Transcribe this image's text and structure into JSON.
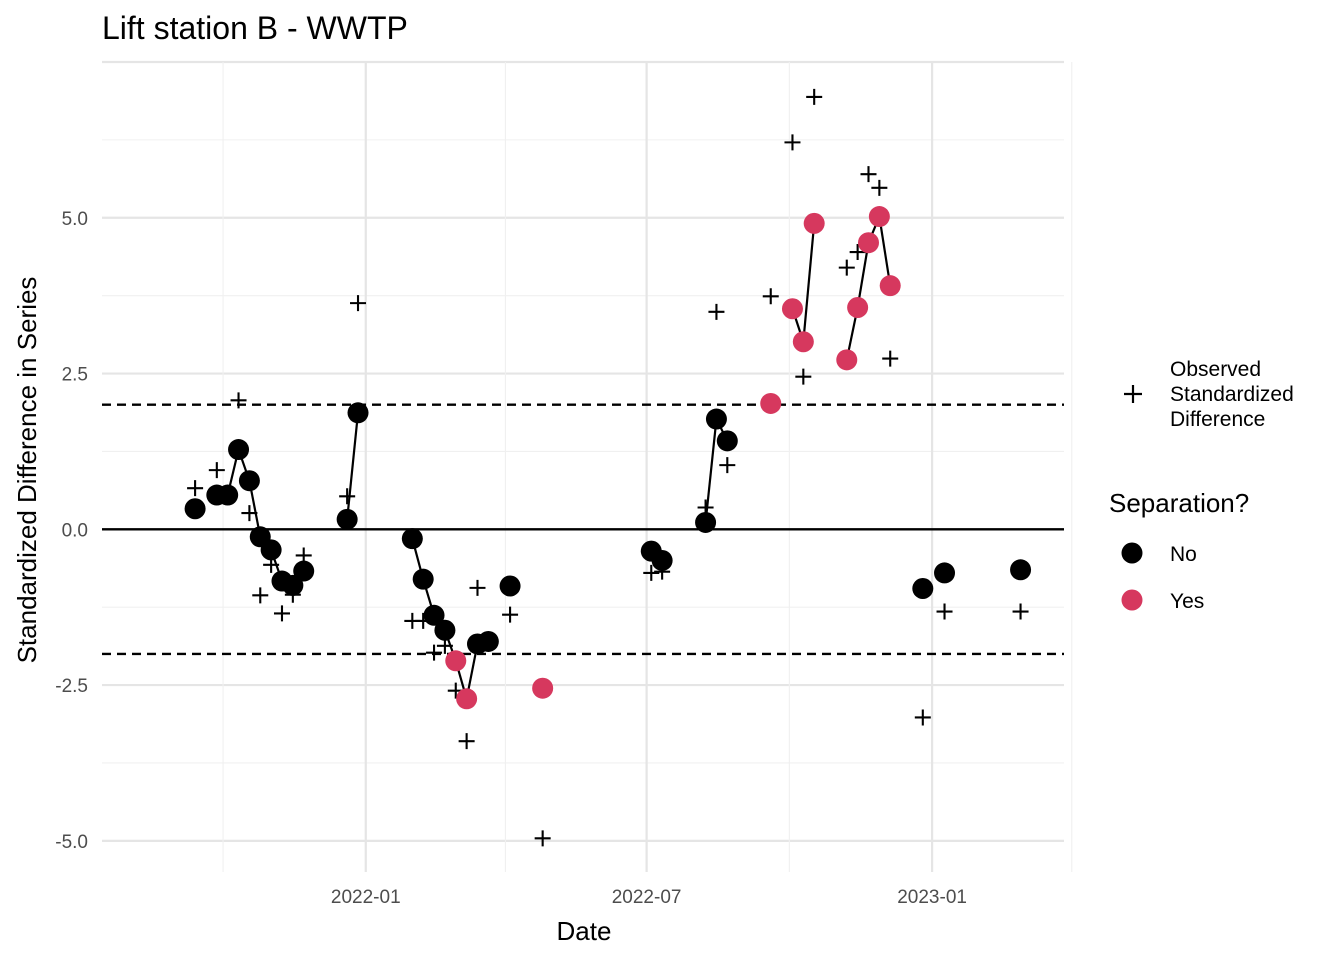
{
  "chart_data": {
    "type": "scatter",
    "title": "Lift station B - WWTP",
    "xlabel": "Date",
    "ylabel": "Standardized Difference in Series",
    "x_ticks": [
      "2022-01",
      "2022-07",
      "2023-01"
    ],
    "y_ticks": [
      "-5.0",
      "-2.5",
      "0.0",
      "2.5",
      "5.0"
    ],
    "ylim": [
      -5.5,
      7.5
    ],
    "xlim": [
      "2021-07-15",
      "2023-03-27"
    ],
    "reference_lines": [
      {
        "y": 0,
        "style": "solid"
      },
      {
        "y": 2,
        "style": "dashed"
      },
      {
        "y": -2,
        "style": "dashed"
      }
    ],
    "grid": true,
    "legend_placement": "right",
    "legend_observed": {
      "label_lines": [
        "Observed",
        "Standardized",
        "Difference"
      ],
      "symbol": "+"
    },
    "legend_separation": {
      "title": "Separation?",
      "entries": [
        {
          "label": "No",
          "color": "#000000"
        },
        {
          "label": "Yes",
          "color": "#d6385e"
        }
      ]
    },
    "series": [
      {
        "name": "Observed Standardized Difference",
        "marker": "plus",
        "points": [
          [
            "2021-09-13",
            0.66
          ],
          [
            "2021-09-27",
            0.95
          ],
          [
            "2021-10-11",
            2.07
          ],
          [
            "2021-10-18",
            0.26
          ],
          [
            "2021-10-25",
            -1.06
          ],
          [
            "2021-11-01",
            -0.57
          ],
          [
            "2021-11-08",
            -1.35
          ],
          [
            "2021-11-15",
            -1.05
          ],
          [
            "2021-11-22",
            -0.42
          ],
          [
            "2021-12-20",
            0.53
          ],
          [
            "2021-12-27",
            3.63
          ],
          [
            "2022-01-31",
            -1.47
          ],
          [
            "2022-02-07",
            -1.47
          ],
          [
            "2022-02-14",
            -1.98
          ],
          [
            "2022-02-21",
            -1.87
          ],
          [
            "2022-02-28",
            -2.59
          ],
          [
            "2022-03-07",
            -3.4
          ],
          [
            "2022-03-14",
            -0.94
          ],
          [
            "2022-04-04",
            -1.37
          ],
          [
            "2022-04-25",
            -4.96
          ],
          [
            "2022-07-04",
            -0.7
          ],
          [
            "2022-07-11",
            -0.68
          ],
          [
            "2022-08-08",
            0.35
          ],
          [
            "2022-08-15",
            3.49
          ],
          [
            "2022-08-22",
            1.03
          ],
          [
            "2022-09-19",
            3.74
          ],
          [
            "2022-10-03",
            6.21
          ],
          [
            "2022-10-10",
            2.45
          ],
          [
            "2022-10-17",
            6.94
          ],
          [
            "2022-11-07",
            4.2
          ],
          [
            "2022-11-14",
            4.45
          ],
          [
            "2022-11-21",
            5.7
          ],
          [
            "2022-11-28",
            5.48
          ],
          [
            "2022-12-05",
            2.74
          ],
          [
            "2022-12-26",
            -3.02
          ],
          [
            "2023-01-09",
            -1.32
          ],
          [
            "2023-02-27",
            -1.32
          ]
        ]
      },
      {
        "name": "Separation",
        "marker": "circle",
        "points": [
          [
            "2021-09-13",
            0.33,
            "No"
          ],
          [
            "2021-09-27",
            0.55,
            "No"
          ],
          [
            "2021-10-04",
            0.55,
            "No"
          ],
          [
            "2021-10-11",
            1.28,
            "No"
          ],
          [
            "2021-10-18",
            0.78,
            "No"
          ],
          [
            "2021-10-25",
            -0.12,
            "No"
          ],
          [
            "2021-11-01",
            -0.33,
            "No"
          ],
          [
            "2021-11-08",
            -0.83,
            "No"
          ],
          [
            "2021-11-15",
            -0.9,
            "No"
          ],
          [
            "2021-11-22",
            -0.67,
            "No"
          ],
          [
            "2021-12-20",
            0.16,
            "No"
          ],
          [
            "2021-12-27",
            1.87,
            "No"
          ],
          [
            "2022-01-31",
            -0.15,
            "No"
          ],
          [
            "2022-02-07",
            -0.8,
            "No"
          ],
          [
            "2022-02-14",
            -1.38,
            "No"
          ],
          [
            "2022-02-21",
            -1.62,
            "No"
          ],
          [
            "2022-02-28",
            -2.11,
            "Yes"
          ],
          [
            "2022-03-07",
            -2.72,
            "Yes"
          ],
          [
            "2022-03-14",
            -1.84,
            "No"
          ],
          [
            "2022-03-21",
            -1.8,
            "No"
          ],
          [
            "2022-04-04",
            -0.91,
            "No"
          ],
          [
            "2022-04-25",
            -2.55,
            "Yes"
          ],
          [
            "2022-07-04",
            -0.35,
            "No"
          ],
          [
            "2022-07-11",
            -0.5,
            "No"
          ],
          [
            "2022-08-08",
            0.11,
            "No"
          ],
          [
            "2022-08-15",
            1.77,
            "No"
          ],
          [
            "2022-08-22",
            1.42,
            "No"
          ],
          [
            "2022-09-19",
            2.02,
            "Yes"
          ],
          [
            "2022-10-03",
            3.54,
            "Yes"
          ],
          [
            "2022-10-10",
            3.01,
            "Yes"
          ],
          [
            "2022-10-17",
            4.91,
            "Yes"
          ],
          [
            "2022-11-07",
            2.72,
            "Yes"
          ],
          [
            "2022-11-14",
            3.56,
            "Yes"
          ],
          [
            "2022-11-21",
            4.6,
            "Yes"
          ],
          [
            "2022-11-28",
            5.02,
            "Yes"
          ],
          [
            "2022-12-05",
            3.91,
            "Yes"
          ],
          [
            "2022-12-26",
            -0.95,
            "No"
          ],
          [
            "2023-01-09",
            -0.7,
            "No"
          ],
          [
            "2023-02-27",
            -0.65,
            "No"
          ]
        ]
      }
    ]
  }
}
